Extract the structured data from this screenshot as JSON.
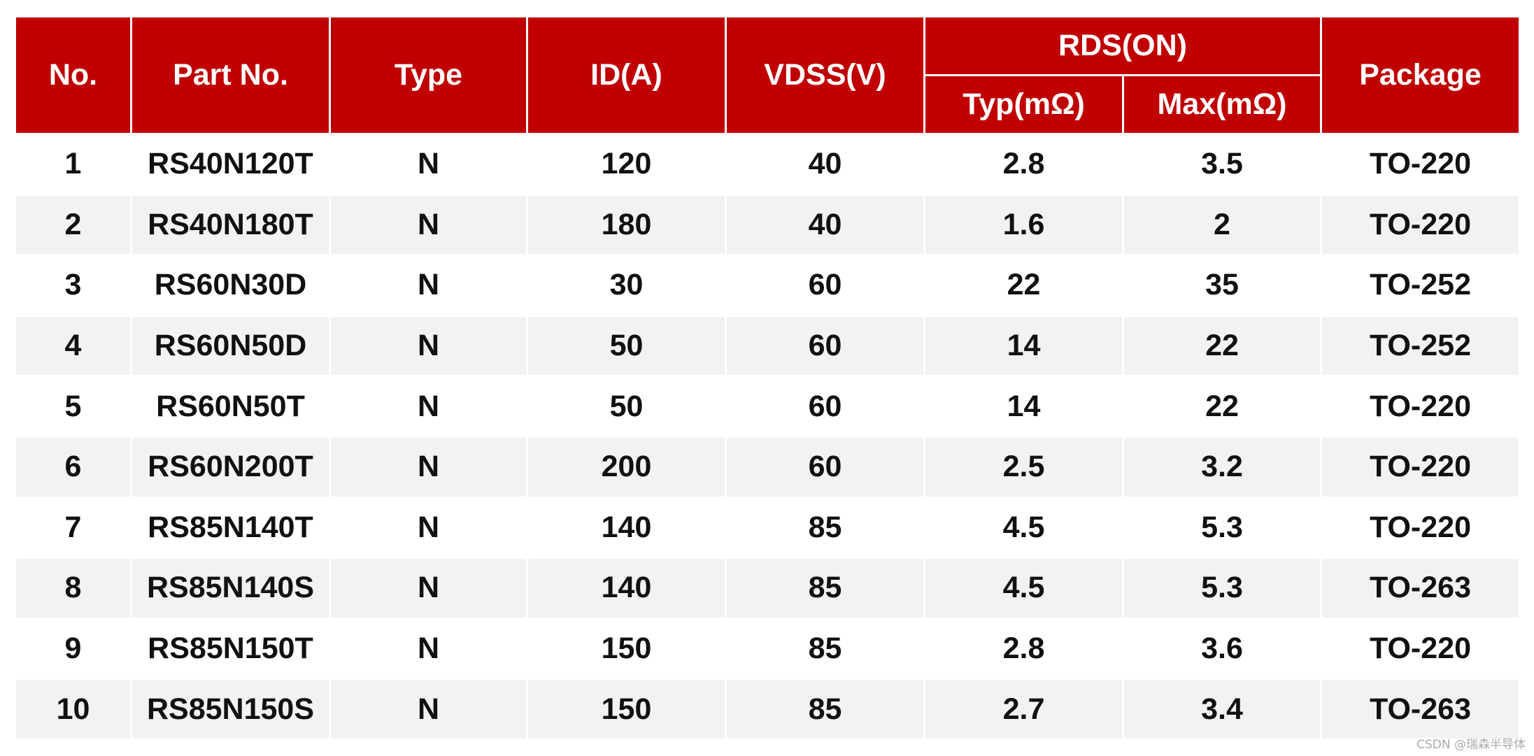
{
  "table": {
    "header_top": [
      "No.",
      "Part No.",
      "Type",
      "ID(A)",
      "VDSS(V)",
      "RDS(ON)",
      "Package"
    ],
    "header_sub": [
      "Typ(mΩ)",
      "Max(mΩ)"
    ],
    "rows": [
      [
        "1",
        "RS40N120T",
        "N",
        "120",
        "40",
        "2.8",
        "3.5",
        "TO-220"
      ],
      [
        "2",
        "RS40N180T",
        "N",
        "180",
        "40",
        "1.6",
        "2",
        "TO-220"
      ],
      [
        "3",
        "RS60N30D",
        "N",
        "30",
        "60",
        "22",
        "35",
        "TO-252"
      ],
      [
        "4",
        "RS60N50D",
        "N",
        "50",
        "60",
        "14",
        "22",
        "TO-252"
      ],
      [
        "5",
        "RS60N50T",
        "N",
        "50",
        "60",
        "14",
        "22",
        "TO-220"
      ],
      [
        "6",
        "RS60N200T",
        "N",
        "200",
        "60",
        "2.5",
        "3.2",
        "TO-220"
      ],
      [
        "7",
        "RS85N140T",
        "N",
        "140",
        "85",
        "4.5",
        "5.3",
        "TO-220"
      ],
      [
        "8",
        "RS85N140S",
        "N",
        "140",
        "85",
        "4.5",
        "5.3",
        "TO-263"
      ],
      [
        "9",
        "RS85N150T",
        "N",
        "150",
        "85",
        "2.8",
        "3.6",
        "TO-220"
      ],
      [
        "10",
        "RS85N150S",
        "N",
        "150",
        "85",
        "2.7",
        "3.4",
        "TO-263"
      ]
    ]
  },
  "watermark": "CSDN @瑞森半导体"
}
